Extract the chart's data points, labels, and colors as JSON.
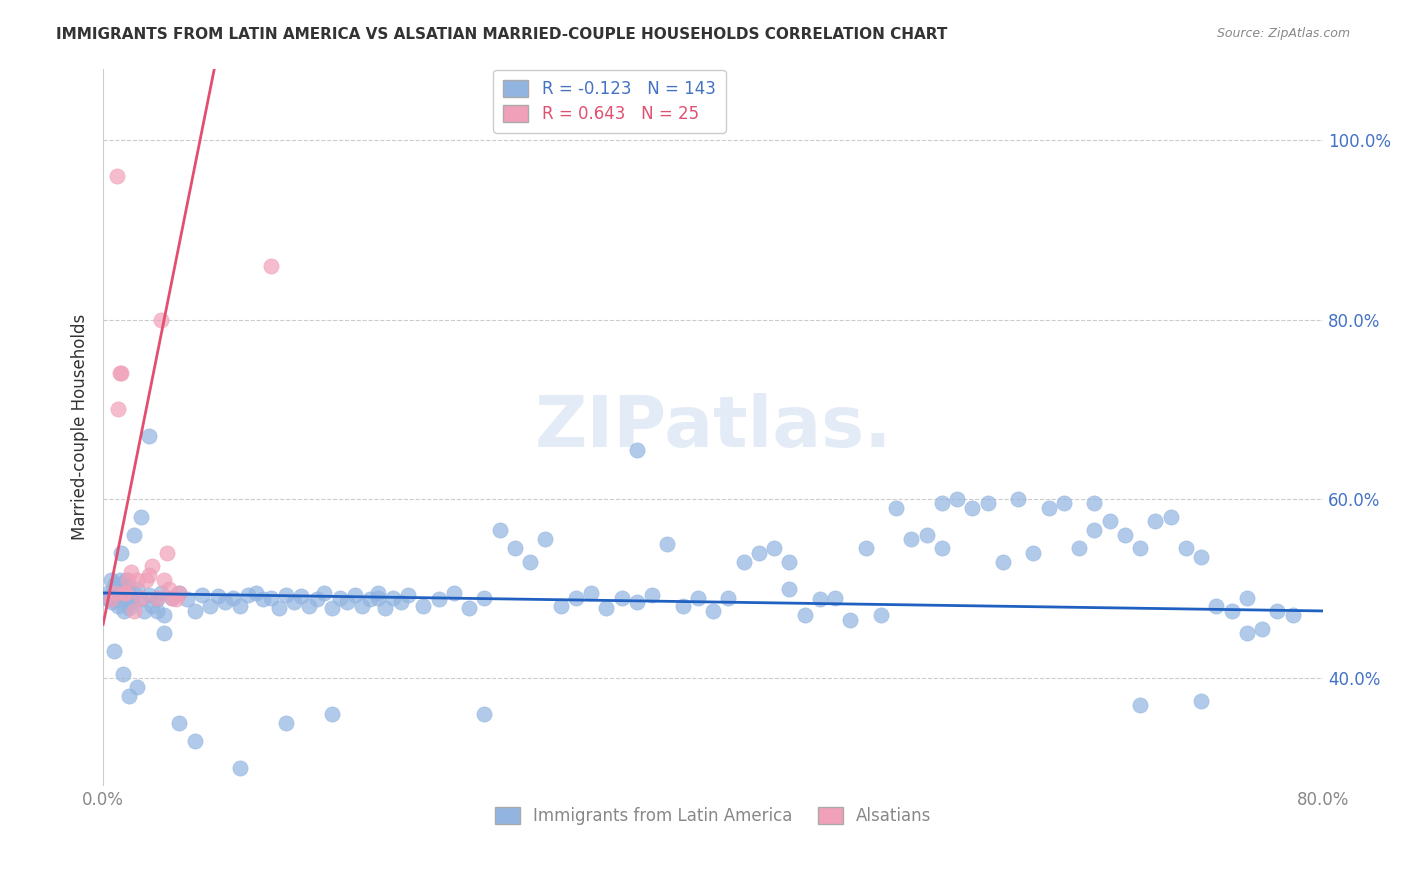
{
  "title": "IMMIGRANTS FROM LATIN AMERICA VS ALSATIAN MARRIED-COUPLE HOUSEHOLDS CORRELATION CHART",
  "source": "Source: ZipAtlas.com",
  "xlabel_bottom": "",
  "ylabel": "Married-couple Households",
  "x_tick_labels": [
    "0.0%",
    "80.0%"
  ],
  "y_tick_labels": [
    "40.0%",
    "60.0%",
    "80.0%",
    "100.0%"
  ],
  "y_tick_values": [
    0.4,
    0.6,
    0.8,
    1.0
  ],
  "xlim": [
    0.0,
    0.8
  ],
  "ylim": [
    0.28,
    1.08
  ],
  "legend_label1": "Immigrants from Latin America",
  "legend_label2": "Alsatians",
  "R_blue": "-0.123",
  "N_blue": "143",
  "R_pink": "0.643",
  "N_pink": "25",
  "blue_color": "#92b4e0",
  "pink_color": "#f0a0b8",
  "blue_line_color": "#2060c0",
  "pink_line_color": "#e05070",
  "watermark": "ZIPatlas.",
  "blue_x": [
    0.002,
    0.003,
    0.004,
    0.005,
    0.006,
    0.007,
    0.008,
    0.009,
    0.01,
    0.011,
    0.012,
    0.013,
    0.014,
    0.015,
    0.016,
    0.017,
    0.018,
    0.019,
    0.02,
    0.022,
    0.025,
    0.027,
    0.03,
    0.032,
    0.035,
    0.038,
    0.04,
    0.045,
    0.05,
    0.055,
    0.06,
    0.065,
    0.07,
    0.075,
    0.08,
    0.085,
    0.09,
    0.095,
    0.1,
    0.105,
    0.11,
    0.115,
    0.12,
    0.125,
    0.13,
    0.135,
    0.14,
    0.145,
    0.15,
    0.155,
    0.16,
    0.165,
    0.17,
    0.175,
    0.18,
    0.185,
    0.19,
    0.195,
    0.2,
    0.21,
    0.22,
    0.23,
    0.24,
    0.25,
    0.26,
    0.27,
    0.28,
    0.29,
    0.3,
    0.31,
    0.32,
    0.33,
    0.34,
    0.35,
    0.36,
    0.37,
    0.38,
    0.39,
    0.4,
    0.41,
    0.42,
    0.43,
    0.44,
    0.45,
    0.46,
    0.47,
    0.48,
    0.49,
    0.5,
    0.51,
    0.52,
    0.53,
    0.54,
    0.55,
    0.56,
    0.57,
    0.58,
    0.59,
    0.6,
    0.61,
    0.62,
    0.63,
    0.64,
    0.65,
    0.66,
    0.67,
    0.68,
    0.69,
    0.7,
    0.71,
    0.72,
    0.73,
    0.74,
    0.75,
    0.76,
    0.77,
    0.78,
    0.005,
    0.008,
    0.012,
    0.015,
    0.02,
    0.025,
    0.03,
    0.035,
    0.04,
    0.007,
    0.013,
    0.022,
    0.017,
    0.05,
    0.06,
    0.09,
    0.12,
    0.15,
    0.18,
    0.25,
    0.35,
    0.45,
    0.55,
    0.65,
    0.75,
    0.68,
    0.72
  ],
  "blue_y": [
    0.49,
    0.495,
    0.488,
    0.492,
    0.485,
    0.5,
    0.493,
    0.487,
    0.48,
    0.51,
    0.505,
    0.488,
    0.475,
    0.495,
    0.502,
    0.478,
    0.49,
    0.485,
    0.495,
    0.5,
    0.488,
    0.475,
    0.493,
    0.48,
    0.488,
    0.495,
    0.47,
    0.49,
    0.495,
    0.488,
    0.475,
    0.493,
    0.48,
    0.492,
    0.485,
    0.49,
    0.48,
    0.493,
    0.495,
    0.488,
    0.49,
    0.478,
    0.493,
    0.485,
    0.492,
    0.48,
    0.488,
    0.495,
    0.478,
    0.49,
    0.485,
    0.493,
    0.48,
    0.488,
    0.495,
    0.478,
    0.49,
    0.485,
    0.493,
    0.48,
    0.488,
    0.495,
    0.478,
    0.49,
    0.565,
    0.545,
    0.53,
    0.555,
    0.48,
    0.49,
    0.495,
    0.478,
    0.49,
    0.485,
    0.493,
    0.55,
    0.48,
    0.49,
    0.475,
    0.49,
    0.53,
    0.54,
    0.545,
    0.53,
    0.47,
    0.488,
    0.49,
    0.465,
    0.545,
    0.47,
    0.59,
    0.555,
    0.56,
    0.545,
    0.6,
    0.59,
    0.595,
    0.53,
    0.6,
    0.54,
    0.59,
    0.595,
    0.545,
    0.565,
    0.575,
    0.56,
    0.545,
    0.575,
    0.58,
    0.545,
    0.535,
    0.48,
    0.475,
    0.45,
    0.455,
    0.475,
    0.47,
    0.51,
    0.505,
    0.54,
    0.51,
    0.56,
    0.58,
    0.67,
    0.475,
    0.45,
    0.43,
    0.405,
    0.39,
    0.38,
    0.35,
    0.33,
    0.3,
    0.35,
    0.36,
    0.49,
    0.36,
    0.655,
    0.5,
    0.595,
    0.595,
    0.49,
    0.37,
    0.375
  ],
  "pink_x": [
    0.005,
    0.008,
    0.01,
    0.012,
    0.014,
    0.016,
    0.018,
    0.02,
    0.022,
    0.025,
    0.028,
    0.03,
    0.032,
    0.035,
    0.038,
    0.04,
    0.043,
    0.045,
    0.048,
    0.05,
    0.009,
    0.011,
    0.015,
    0.042,
    0.11
  ],
  "pink_y": [
    0.488,
    0.495,
    0.7,
    0.74,
    0.495,
    0.51,
    0.518,
    0.475,
    0.51,
    0.49,
    0.51,
    0.515,
    0.525,
    0.49,
    0.8,
    0.51,
    0.5,
    0.49,
    0.488,
    0.495,
    0.96,
    0.74,
    0.495,
    0.54,
    0.86
  ]
}
